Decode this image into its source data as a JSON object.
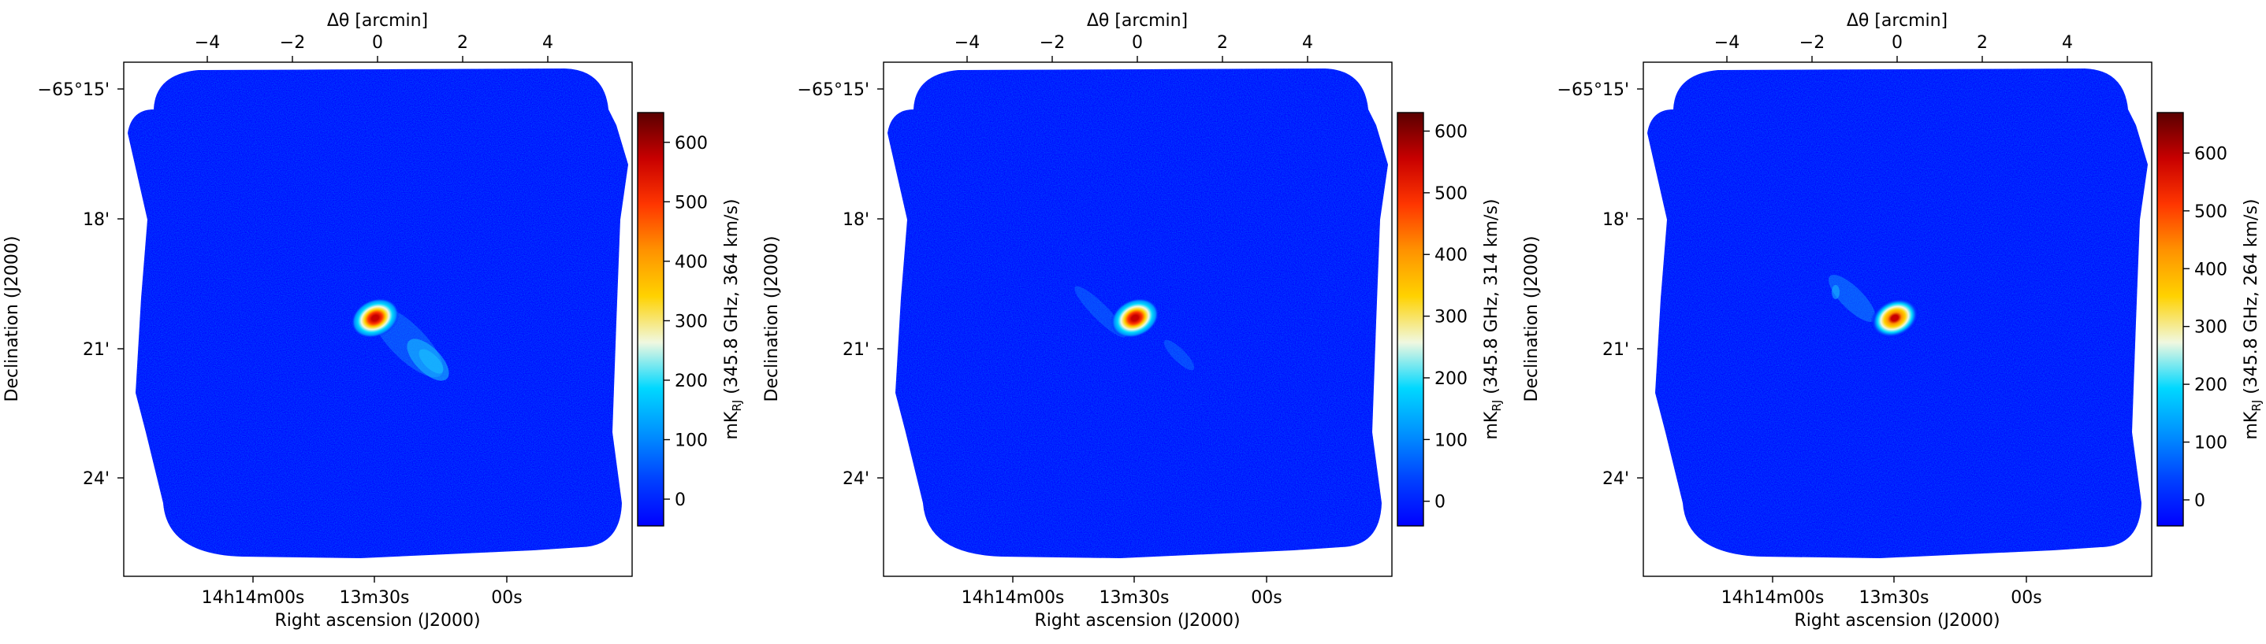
{
  "chart_data": [
    {
      "type": "heatmap",
      "top_xlabel": "Δθ [arcmin]",
      "top_ticks": [
        "−4",
        "−2",
        "0",
        "2",
        "4"
      ],
      "top_tick_values": [
        -4,
        -2,
        0,
        2,
        4
      ],
      "xlabel": "Right ascension (J2000)",
      "x_ticks": [
        "14h14m00s",
        "13m30s",
        "00s"
      ],
      "ylabel": "Declination (J2000)",
      "y_ticks": [
        "−65°15'",
        "18'",
        "21'",
        "24'"
      ],
      "colorbar_label": "mKRJ (345.8 GHz, 364 km/s)",
      "colorbar_label_main": "mK",
      "colorbar_label_sub": "RJ",
      "colorbar_label_rest": " (345.8 GHz, 364 km/s)",
      "colorbar_ticks": [
        "0",
        "100",
        "200",
        "300",
        "400",
        "500",
        "600"
      ],
      "colorbar_tick_values": [
        0,
        100,
        200,
        300,
        400,
        500,
        600
      ],
      "colorbar_range": [
        -45,
        650
      ],
      "colormap": [
        "#0000ff",
        "#0040ff",
        "#0090ff",
        "#00d8ff",
        "#f0f8e0",
        "#ffd200",
        "#ff9200",
        "#ff3600",
        "#c80000",
        "#5a0000"
      ],
      "source_peak": 650,
      "background_level": 20,
      "secondary_emission": "extended tail toward lower right"
    },
    {
      "type": "heatmap",
      "top_xlabel": "Δθ [arcmin]",
      "top_ticks": [
        "−4",
        "−2",
        "0",
        "2",
        "4"
      ],
      "top_tick_values": [
        -4,
        -2,
        0,
        2,
        4
      ],
      "xlabel": "Right ascension (J2000)",
      "x_ticks": [
        "14h14m00s",
        "13m30s",
        "00s"
      ],
      "ylabel": "Declination (J2000)",
      "y_ticks": [
        "−65°15'",
        "18'",
        "21'",
        "24'"
      ],
      "colorbar_label": "mKRJ (345.8 GHz, 314 km/s)",
      "colorbar_label_main": "mK",
      "colorbar_label_sub": "RJ",
      "colorbar_label_rest": " (345.8 GHz, 314 km/s)",
      "colorbar_ticks": [
        "0",
        "100",
        "200",
        "300",
        "400",
        "500",
        "600"
      ],
      "colorbar_tick_values": [
        0,
        100,
        200,
        300,
        400,
        500,
        600
      ],
      "colorbar_range": [
        -40,
        630
      ],
      "colormap": [
        "#0000ff",
        "#0040ff",
        "#0090ff",
        "#00d8ff",
        "#f0f8e0",
        "#ffd200",
        "#ff9200",
        "#ff3600",
        "#c80000",
        "#5a0000"
      ],
      "source_peak": 630,
      "background_level": 20,
      "secondary_emission": "faint streaks toward upper left and lower right"
    },
    {
      "type": "heatmap",
      "top_xlabel": "Δθ [arcmin]",
      "top_ticks": [
        "−4",
        "−2",
        "0",
        "2",
        "4"
      ],
      "top_tick_values": [
        -4,
        -2,
        0,
        2,
        4
      ],
      "xlabel": "Right ascension (J2000)",
      "x_ticks": [
        "14h14m00s",
        "13m30s",
        "00s"
      ],
      "ylabel": "Declination (J2000)",
      "y_ticks": [
        "−65°15'",
        "18'",
        "21'",
        "24'"
      ],
      "colorbar_label": "mKRJ (345.8 GHz, 264 km/s)",
      "colorbar_label_main": "mK",
      "colorbar_label_sub": "RJ",
      "colorbar_label_rest": " (345.8 GHz, 264 km/s)",
      "colorbar_ticks": [
        "0",
        "100",
        "200",
        "300",
        "400",
        "500",
        "600"
      ],
      "colorbar_tick_values": [
        0,
        100,
        200,
        300,
        400,
        500,
        600
      ],
      "colorbar_range": [
        -45,
        670
      ],
      "colormap": [
        "#0000ff",
        "#0040ff",
        "#0090ff",
        "#00d8ff",
        "#f0f8e0",
        "#ffd200",
        "#ff9200",
        "#ff3600",
        "#c80000",
        "#5a0000"
      ],
      "source_peak": 670,
      "background_level": 20,
      "secondary_emission": "extended emission toward upper left"
    }
  ]
}
